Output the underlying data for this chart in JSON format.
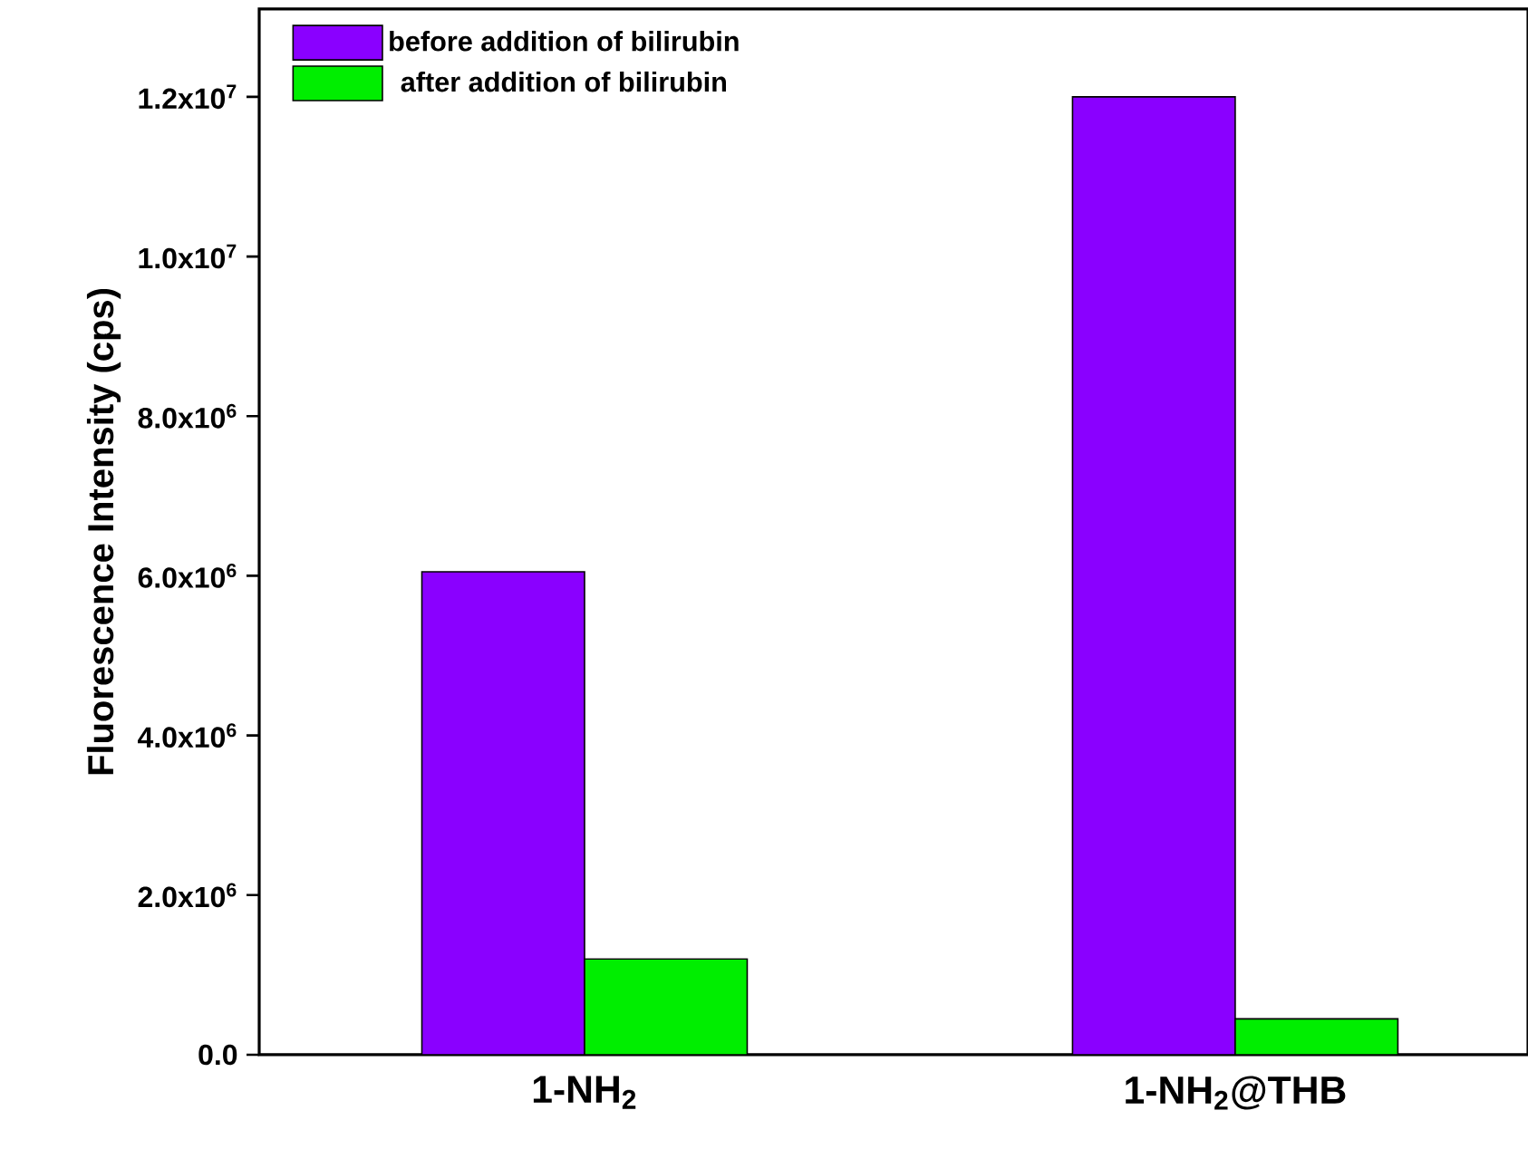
{
  "chart_data": {
    "type": "bar",
    "categories": [
      "1-NH$_{2}$",
      "1-NH$_{2}$@THB"
    ],
    "series": [
      {
        "name": "before addition of bilirubin",
        "color": "#8a00ff",
        "values": [
          6050000,
          12000000
        ]
      },
      {
        "name": "after addition of bilirubin",
        "color": "#00ee00",
        "values": [
          1200000,
          450000
        ]
      }
    ],
    "ylabel": "Fluorescence Intensity (cps)",
    "ylim": [
      0,
      13100000
    ],
    "yticks": [
      {
        "value": 0,
        "label": "0.0"
      },
      {
        "value": 2000000,
        "label": "2.0x10$^{6}$"
      },
      {
        "value": 4000000,
        "label": "4.0x10$^{6}$"
      },
      {
        "value": 6000000,
        "label": "6.0x10$^{6}$"
      },
      {
        "value": 8000000,
        "label": "8.0x10$^{6}$"
      },
      {
        "value": 10000000,
        "label": "1.0x10$^{7}$"
      },
      {
        "value": 12000000,
        "label": "1.2x10$^{7}$"
      }
    ],
    "legend": "top left",
    "grid": false
  }
}
